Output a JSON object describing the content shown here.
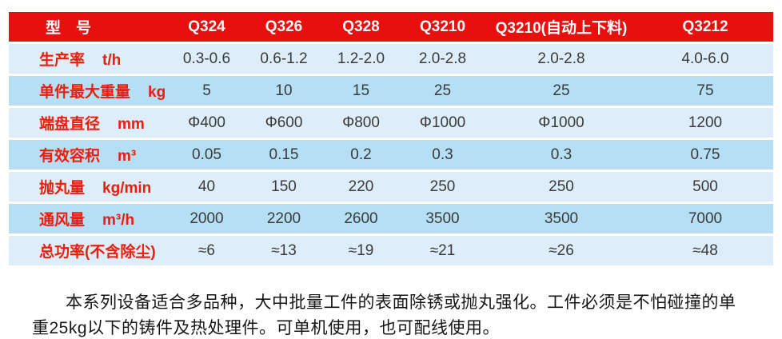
{
  "table": {
    "header": [
      "型　号",
      "Q324",
      "Q326",
      "Q328",
      "Q3210",
      "Q3210(自动上下料)",
      "Q3212"
    ],
    "rows": [
      {
        "label": "生产率",
        "unit": "t/h",
        "values": [
          "0.3-0.6",
          "0.6-1.2",
          "1.2-2.0",
          "2.0-2.8",
          "2.0-2.8",
          "4.0-6.0"
        ]
      },
      {
        "label": "单件最大重量",
        "unit": "kg",
        "values": [
          "5",
          "10",
          "15",
          "25",
          "25",
          "75"
        ]
      },
      {
        "label": "端盘直径",
        "unit": "mm",
        "values": [
          "Φ400",
          "Φ600",
          "Φ800",
          "Φ1000",
          "Φ1000",
          "1200"
        ]
      },
      {
        "label": "有效容积",
        "unit": "m³",
        "values": [
          "0.05",
          "0.15",
          "0.2",
          "0.3",
          "0.3",
          "0.75"
        ]
      },
      {
        "label": "抛丸量",
        "unit": "kg/min",
        "values": [
          "40",
          "150",
          "220",
          "250",
          "250",
          "500"
        ]
      },
      {
        "label": "通风量",
        "unit": "m³/h",
        "values": [
          "2000",
          "2200",
          "2600",
          "3500",
          "3500",
          "7000"
        ]
      },
      {
        "label": "总功率(不含除尘)",
        "unit": "",
        "values": [
          "≈6",
          "≈13",
          "≈19",
          "≈21",
          "≈26",
          "≈48"
        ]
      }
    ]
  },
  "description": {
    "paragraph": "本系列设备适合多品种，大中批量工件的表面除锈或抛丸强化。工件必须是不怕碰撞的单重25kg以下的铸件及热处理件。可单机使用，也可配线使用。"
  },
  "colors": {
    "header_bg": "#e8100e",
    "label_red": "#ed1c0b",
    "row_light": "#ddeefa",
    "row_dark": "#b5dff4",
    "value_text": "#3a3a3a"
  }
}
